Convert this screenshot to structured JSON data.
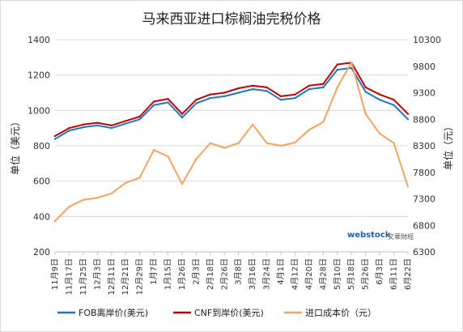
{
  "chart_data": {
    "type": "line",
    "title": "马来西亚进口棕榈油完税价格",
    "ylabel_left": "单位（美元）",
    "ylabel_right": "单位（元）",
    "ylim_left": [
      200,
      1400
    ],
    "ylim_right": [
      6300,
      10300
    ],
    "yticks_left": [
      200,
      400,
      600,
      800,
      1000,
      1200,
      1400
    ],
    "yticks_right": [
      6300,
      6800,
      7300,
      7800,
      8300,
      8800,
      9300,
      9800,
      10300
    ],
    "categories": [
      "11月9日",
      "11月17日",
      "11月25日",
      "12月3日",
      "12月11日",
      "12月21日",
      "12月29日",
      "1月7日",
      "1月15日",
      "1月26日",
      "2月3日",
      "2月18日",
      "2月26日",
      "3月8日",
      "3月16日",
      "3月24日",
      "4月1日",
      "4月12日",
      "4月20日",
      "4月28日",
      "5月10日",
      "5月18日",
      "5月26日",
      "6月3日",
      "6月11日",
      "6月22日"
    ],
    "legend_position": "bottom",
    "series": [
      {
        "name": "FOB离岸价(美元)",
        "axis": "left",
        "color": "#1f77c4",
        "values": [
          838,
          885,
          905,
          915,
          900,
          925,
          950,
          1030,
          1045,
          960,
          1040,
          1070,
          1080,
          1100,
          1120,
          1110,
          1060,
          1070,
          1120,
          1130,
          1230,
          1240,
          1105,
          1060,
          1030,
          950
        ]
      },
      {
        "name": "CNF到岸价(美元)",
        "axis": "left",
        "color": "#c00000",
        "values": [
          855,
          900,
          920,
          930,
          915,
          940,
          965,
          1050,
          1065,
          980,
          1060,
          1090,
          1100,
          1125,
          1140,
          1130,
          1080,
          1090,
          1140,
          1150,
          1260,
          1270,
          1130,
          1090,
          1060,
          980
        ]
      },
      {
        "name": "进口成本价（元）",
        "axis": "right",
        "color": "#f4a460",
        "values": [
          6880,
          7150,
          7280,
          7320,
          7400,
          7600,
          7700,
          8220,
          8100,
          7580,
          8050,
          8350,
          8260,
          8350,
          8700,
          8350,
          8300,
          8360,
          8600,
          8750,
          9400,
          9870,
          8900,
          8530,
          8350,
          7530
        ]
      }
    ]
  },
  "legend": {
    "items": [
      "FOB离岸价(美元)",
      "CNF到岸价(美元)",
      "进口成本价（元）"
    ]
  },
  "watermark": {
    "logo": "webstock",
    "sub": "文華財經"
  }
}
